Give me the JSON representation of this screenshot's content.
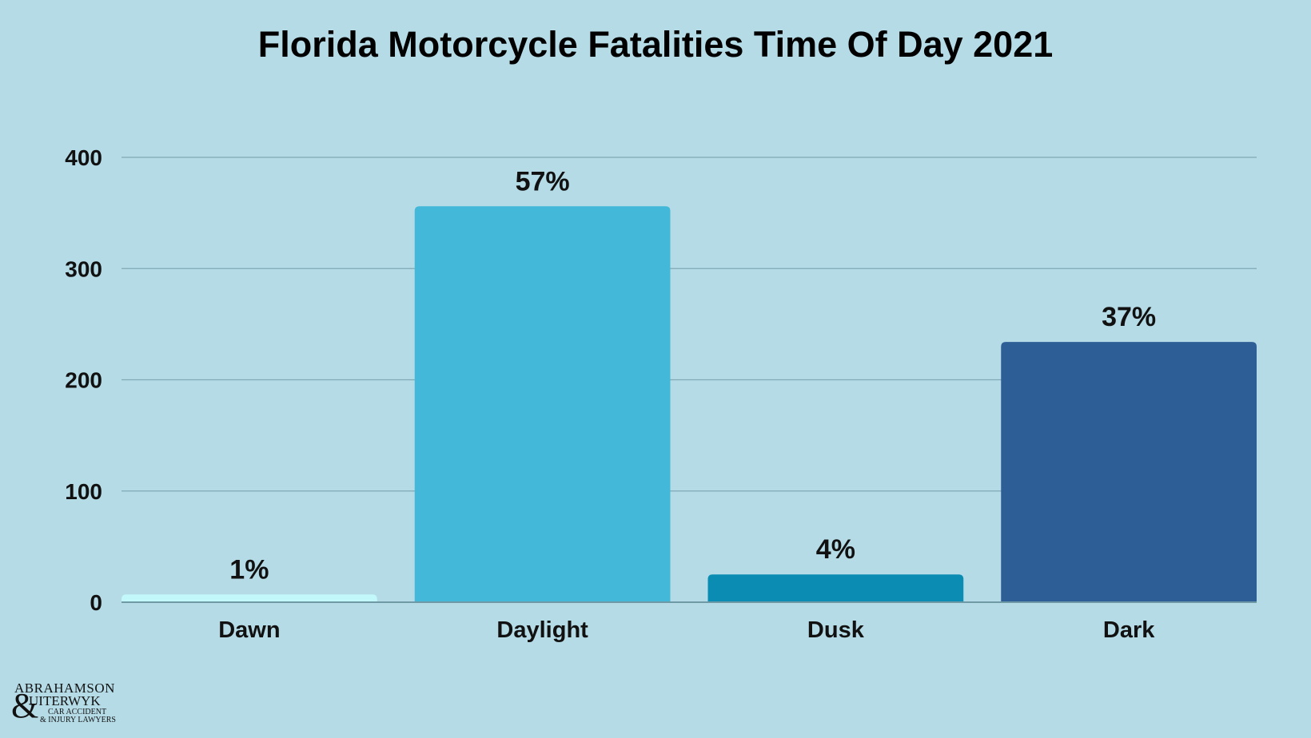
{
  "chart_data": {
    "type": "bar",
    "title": "Florida Motorcycle Fatalities Time Of Day 2021",
    "categories": [
      "Dawn",
      "Daylight",
      "Dusk",
      "Dark"
    ],
    "values": [
      7,
      356,
      25,
      234
    ],
    "data_labels": [
      "1%",
      "57%",
      "4%",
      "37%"
    ],
    "colors": [
      "#c2f8fa",
      "#43b8d8",
      "#0b8db3",
      "#2d5e96"
    ],
    "xlabel": "",
    "ylabel": "",
    "ylim": [
      0,
      400
    ],
    "yticks": [
      "0",
      "100",
      "200",
      "300",
      "400"
    ],
    "grid": true
  },
  "logo": {
    "line1": "ABRAHAMSON",
    "amp": "&",
    "line2": "UITERWYK",
    "line3": "CAR ACCIDENT",
    "line4": "& INJURY LAWYERS"
  }
}
